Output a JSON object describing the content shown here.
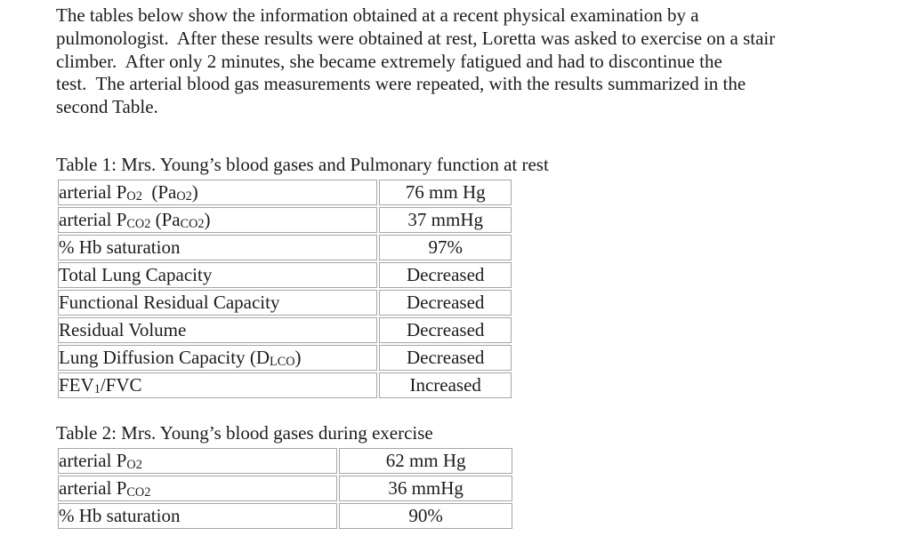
{
  "page": {
    "background_color": "#ffffff",
    "text_color": "#1c1c1c",
    "table_border_color": "#a6a6a6"
  },
  "paragraph": {
    "lines": [
      "The tables below show the information obtained at a recent physical examination by a",
      "pulmonologist.  After these results were obtained at rest, Loretta was asked to exercise on a stair",
      "climber.  After only 2 minutes, she became extremely fatigued and had to discontinue the",
      "test.  The arterial blood gas measurements were repeated, with the results summarized in the",
      "second Table."
    ]
  },
  "table1": {
    "caption": "Table 1: Mrs. Young’s blood gases and Pulmonary function at rest",
    "rows": [
      {
        "label": "arterial P~O2~  (Pa~O2~)",
        "value": "76 mm Hg"
      },
      {
        "label": "arterial P~CO2~ (Pa~CO2~)",
        "value": "37 mmHg"
      },
      {
        "label": "% Hb saturation",
        "value": "97%"
      },
      {
        "label": "Total Lung Capacity",
        "value": "Decreased"
      },
      {
        "label": "Functional Residual Capacity",
        "value": "Decreased"
      },
      {
        "label": "Residual Volume",
        "value": "Decreased"
      },
      {
        "label": "Lung Diffusion Capacity (D~LCO~)",
        "value": "Decreased"
      },
      {
        "label": "FEV~1~/FVC",
        "value": "Increased"
      }
    ]
  },
  "table2": {
    "caption": "Table 2: Mrs. Young’s blood gases during exercise",
    "rows": [
      {
        "label": "arterial P~O2~",
        "value": "62 mm Hg"
      },
      {
        "label": "arterial P~CO2~",
        "value": "36 mmHg"
      },
      {
        "label": "% Hb saturation",
        "value": "90%"
      }
    ]
  }
}
